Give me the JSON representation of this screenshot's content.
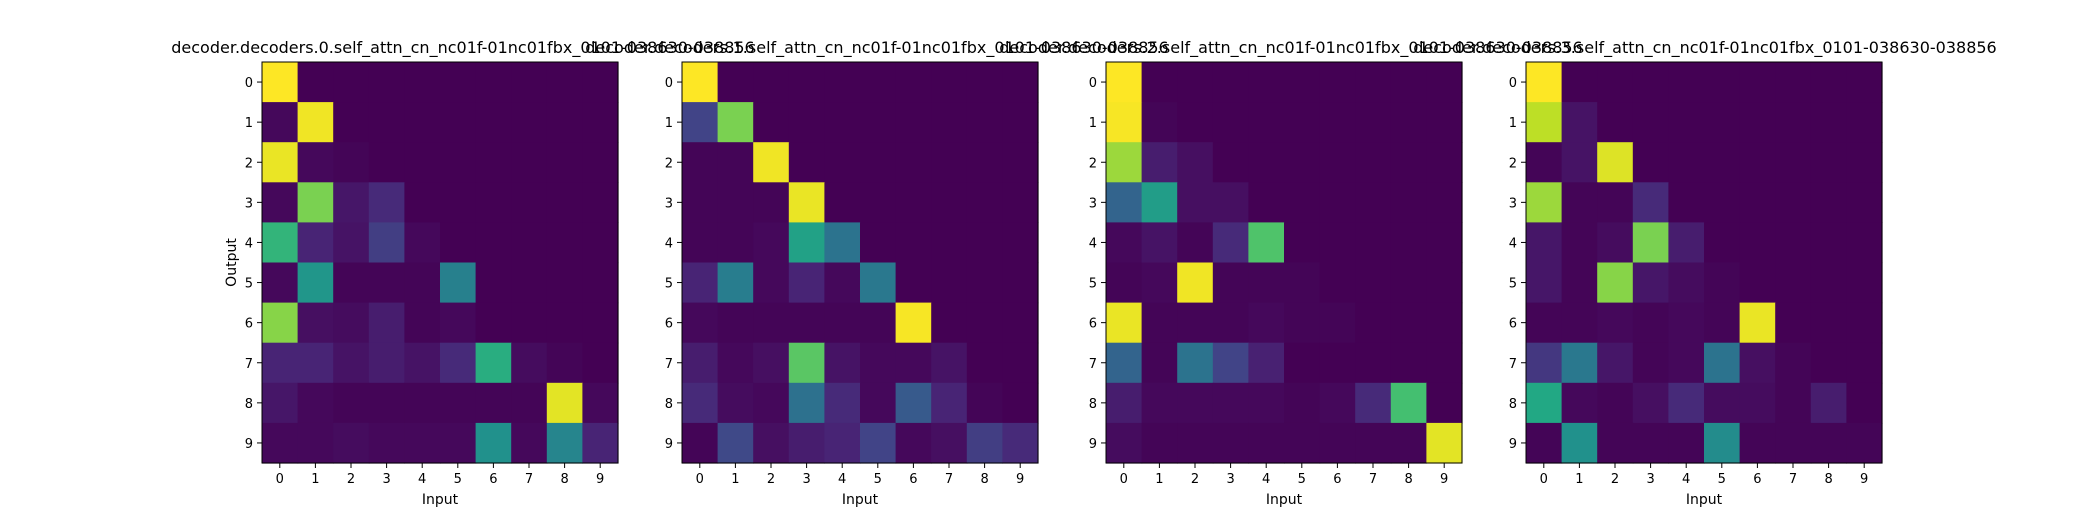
{
  "colormap": [
    "#440154",
    "#482475",
    "#414487",
    "#355f8d",
    "#2a788e",
    "#21918c",
    "#22a884",
    "#44bf70",
    "#7ad151",
    "#bddf26",
    "#fde725"
  ],
  "chart_data": [
    {
      "type": "heatmap",
      "title": "decoder.decoders.0.self_attn_cn_nc01f-01nc01fbx_0101-038630-038856",
      "xlabel": "Input",
      "ylabel": "Output",
      "x_ticks": [
        "0",
        "1",
        "2",
        "3",
        "4",
        "5",
        "6",
        "7",
        "8",
        "9"
      ],
      "y_ticks": [
        "0",
        "1",
        "2",
        "3",
        "4",
        "5",
        "6",
        "7",
        "8",
        "9"
      ],
      "vlim": [
        0,
        1
      ],
      "values": [
        [
          1.0,
          0,
          0,
          0,
          0,
          0,
          0,
          0,
          0,
          0
        ],
        [
          0.02,
          0.98,
          0,
          0,
          0,
          0,
          0,
          0,
          0,
          0
        ],
        [
          0.97,
          0.02,
          0.01,
          0,
          0,
          0,
          0,
          0,
          0,
          0
        ],
        [
          0.02,
          0.8,
          0.06,
          0.12,
          0,
          0,
          0,
          0,
          0,
          0
        ],
        [
          0.65,
          0.1,
          0.05,
          0.18,
          0.02,
          0,
          0,
          0,
          0,
          0
        ],
        [
          0.02,
          0.52,
          0.01,
          0.01,
          0.01,
          0.43,
          0,
          0,
          0,
          0
        ],
        [
          0.82,
          0.04,
          0.03,
          0.08,
          0.01,
          0.02,
          0,
          0,
          0,
          0
        ],
        [
          0.1,
          0.1,
          0.05,
          0.08,
          0.05,
          0.12,
          0.62,
          0.03,
          0.01,
          0
        ],
        [
          0.06,
          0.02,
          0.01,
          0.01,
          0.01,
          0.01,
          0.01,
          0.01,
          0.96,
          0.02
        ],
        [
          0.02,
          0.02,
          0.03,
          0.02,
          0.02,
          0.02,
          0.5,
          0.02,
          0.45,
          0.1
        ]
      ]
    },
    {
      "type": "heatmap",
      "title": "decoder.decoders.1.self_attn_cn_nc01f-01nc01fbx_0101-038630-038856",
      "xlabel": "Input",
      "ylabel": "",
      "x_ticks": [
        "0",
        "1",
        "2",
        "3",
        "4",
        "5",
        "6",
        "7",
        "8",
        "9"
      ],
      "y_ticks": [
        "0",
        "1",
        "2",
        "3",
        "4",
        "5",
        "6",
        "7",
        "8",
        "9"
      ],
      "vlim": [
        0,
        1
      ],
      "values": [
        [
          1.0,
          0,
          0,
          0,
          0,
          0,
          0,
          0,
          0,
          0
        ],
        [
          0.2,
          0.8,
          0,
          0,
          0,
          0,
          0,
          0,
          0,
          0
        ],
        [
          0.01,
          0.01,
          0.98,
          0,
          0,
          0,
          0,
          0,
          0,
          0
        ],
        [
          0.01,
          0.01,
          0.01,
          0.97,
          0,
          0,
          0,
          0,
          0,
          0
        ],
        [
          0.01,
          0.01,
          0.02,
          0.57,
          0.38,
          0,
          0,
          0,
          0,
          0
        ],
        [
          0.1,
          0.42,
          0.02,
          0.1,
          0.02,
          0.4,
          0,
          0,
          0,
          0
        ],
        [
          0.02,
          0.01,
          0.01,
          0.01,
          0.01,
          0.01,
          0.99,
          0,
          0,
          0
        ],
        [
          0.08,
          0.02,
          0.04,
          0.74,
          0.05,
          0.02,
          0.02,
          0.05,
          0,
          0
        ],
        [
          0.12,
          0.03,
          0.02,
          0.37,
          0.12,
          0.02,
          0.28,
          0.1,
          0.01,
          0
        ],
        [
          0.01,
          0.22,
          0.04,
          0.08,
          0.1,
          0.2,
          0.02,
          0.04,
          0.18,
          0.12
        ]
      ]
    },
    {
      "type": "heatmap",
      "title": "decoder.decoders.2.self_attn_cn_nc01f-01nc01fbx_0101-038630-038856",
      "xlabel": "Input",
      "ylabel": "",
      "x_ticks": [
        "0",
        "1",
        "2",
        "3",
        "4",
        "5",
        "6",
        "7",
        "8",
        "9"
      ],
      "y_ticks": [
        "0",
        "1",
        "2",
        "3",
        "4",
        "5",
        "6",
        "7",
        "8",
        "9"
      ],
      "vlim": [
        0,
        1
      ],
      "values": [
        [
          1.0,
          0,
          0,
          0,
          0,
          0,
          0,
          0,
          0,
          0
        ],
        [
          0.99,
          0.01,
          0,
          0,
          0,
          0,
          0,
          0,
          0,
          0
        ],
        [
          0.85,
          0.08,
          0.04,
          0,
          0,
          0,
          0,
          0,
          0,
          0
        ],
        [
          0.32,
          0.55,
          0.04,
          0.04,
          0,
          0,
          0,
          0,
          0,
          0
        ],
        [
          0.02,
          0.05,
          0.01,
          0.12,
          0.72,
          0,
          0,
          0,
          0,
          0
        ],
        [
          0.01,
          0.02,
          0.98,
          0.01,
          0.01,
          0.01,
          0,
          0,
          0,
          0
        ],
        [
          0.97,
          0.01,
          0.01,
          0.01,
          0.02,
          0.01,
          0.01,
          0,
          0,
          0
        ],
        [
          0.32,
          0.01,
          0.38,
          0.2,
          0.09,
          0,
          0,
          0,
          0,
          0
        ],
        [
          0.08,
          0.02,
          0.02,
          0.02,
          0.02,
          0.01,
          0.02,
          0.12,
          0.7,
          0
        ],
        [
          0.03,
          0.01,
          0.01,
          0.01,
          0.01,
          0.01,
          0.01,
          0.01,
          0.01,
          0.96
        ]
      ]
    },
    {
      "type": "heatmap",
      "title": "decoder.decoders.3.self_attn_cn_nc01f-01nc01fbx_0101-038630-038856",
      "xlabel": "Input",
      "ylabel": "",
      "x_ticks": [
        "0",
        "1",
        "2",
        "3",
        "4",
        "5",
        "6",
        "7",
        "8",
        "9"
      ],
      "y_ticks": [
        "0",
        "1",
        "2",
        "3",
        "4",
        "5",
        "6",
        "7",
        "8",
        "9"
      ],
      "vlim": [
        0,
        1
      ],
      "values": [
        [
          1.0,
          0,
          0,
          0,
          0,
          0,
          0,
          0,
          0,
          0
        ],
        [
          0.9,
          0.05,
          0,
          0,
          0,
          0,
          0,
          0,
          0,
          0
        ],
        [
          0.01,
          0.05,
          0.95,
          0,
          0,
          0,
          0,
          0,
          0,
          0
        ],
        [
          0.85,
          0.01,
          0.01,
          0.12,
          0,
          0,
          0,
          0,
          0,
          0
        ],
        [
          0.06,
          0.01,
          0.03,
          0.8,
          0.08,
          0,
          0,
          0,
          0,
          0
        ],
        [
          0.06,
          0.01,
          0.82,
          0.06,
          0.03,
          0.01,
          0,
          0,
          0,
          0
        ],
        [
          0.01,
          0.01,
          0.02,
          0.01,
          0.02,
          0.01,
          0.97,
          0,
          0,
          0
        ],
        [
          0.16,
          0.4,
          0.06,
          0.01,
          0.02,
          0.38,
          0.04,
          0.01,
          0,
          0
        ],
        [
          0.6,
          0.02,
          0.01,
          0.04,
          0.12,
          0.03,
          0.03,
          0.01,
          0.08,
          0
        ],
        [
          0.01,
          0.5,
          0.01,
          0.01,
          0.01,
          0.48,
          0.01,
          0.01,
          0.01,
          0.01
        ]
      ]
    }
  ]
}
